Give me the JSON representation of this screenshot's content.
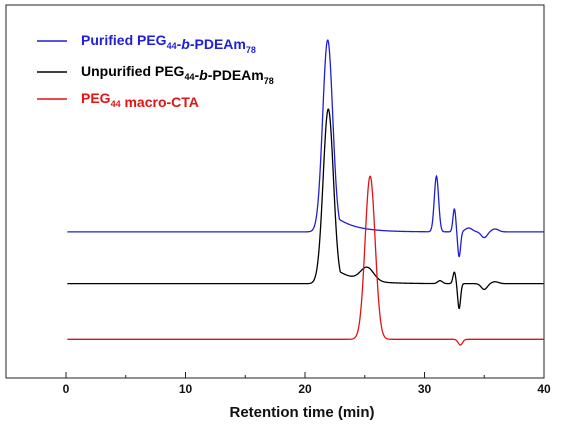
{
  "chart_data": {
    "type": "line",
    "xlabel": "Retention time (min)",
    "ylabel": "",
    "xlim": [
      0,
      40
    ],
    "x_ticks": [
      "0",
      "10",
      "20",
      "30",
      "40"
    ],
    "y_axis_visible": false,
    "grid": false,
    "legend_placement": "top-left",
    "series": [
      {
        "name": "Purified PEG44-b-PDEAm78",
        "legend": [
          {
            "t": "Purified PEG",
            "s": ""
          },
          {
            "t": "44",
            "s": "sub"
          },
          {
            "t": "-",
            "s": ""
          },
          {
            "t": "b",
            "s": "it"
          },
          {
            "t": "-PDEAm",
            "s": ""
          },
          {
            "t": "78",
            "s": "sub"
          }
        ],
        "color": "#1f1fd6",
        "baseline": 0.0,
        "peaks": [
          {
            "x": 21.9,
            "h": 1.0,
            "sigma": 0.42,
            "tail": 1.6
          },
          {
            "x": 31.0,
            "h": 0.29,
            "sigma": 0.18,
            "tail": 0.0
          },
          {
            "x": 32.5,
            "h": 0.12,
            "sigma": 0.12,
            "tail": 0.0
          },
          {
            "x": 32.9,
            "h": -0.13,
            "sigma": 0.12,
            "tail": 0.0
          },
          {
            "x": 33.7,
            "h": 0.02,
            "sigma": 0.3,
            "tail": 0.0
          },
          {
            "x": 35.0,
            "h": -0.03,
            "sigma": 0.25,
            "tail": 0.0
          },
          {
            "x": 35.9,
            "h": 0.015,
            "sigma": 0.3,
            "tail": 0.0
          }
        ]
      },
      {
        "name": "Unpurified PEG44-b-PDEAm78",
        "legend": [
          {
            "t": "Unpurified PEG",
            "s": ""
          },
          {
            "t": "44",
            "s": "sub"
          },
          {
            "t": "-",
            "s": ""
          },
          {
            "t": "b",
            "s": "it"
          },
          {
            "t": "-PDEAm",
            "s": ""
          },
          {
            "t": "78",
            "s": "sub"
          }
        ],
        "color": "#000000",
        "baseline": -0.27,
        "peaks": [
          {
            "x": 21.95,
            "h": 0.91,
            "sigma": 0.43,
            "tail": 1.7
          },
          {
            "x": 25.2,
            "h": 0.07,
            "sigma": 0.55,
            "tail": 0.0
          },
          {
            "x": 31.3,
            "h": 0.015,
            "sigma": 0.2,
            "tail": 0.0
          },
          {
            "x": 32.5,
            "h": 0.06,
            "sigma": 0.12,
            "tail": 0.0
          },
          {
            "x": 32.9,
            "h": -0.13,
            "sigma": 0.12,
            "tail": 0.0
          },
          {
            "x": 35.0,
            "h": -0.03,
            "sigma": 0.25,
            "tail": 0.0
          },
          {
            "x": 35.9,
            "h": 0.01,
            "sigma": 0.3,
            "tail": 0.0
          }
        ]
      },
      {
        "name": "PEG44 macro-CTA",
        "legend": [
          {
            "t": "PEG",
            "s": ""
          },
          {
            "t": "44",
            "s": "sub"
          },
          {
            "t": " macro-CTA",
            "s": ""
          }
        ],
        "color": "#e01414",
        "baseline": -0.56,
        "peaks": [
          {
            "x": 25.45,
            "h": 0.85,
            "sigma": 0.42,
            "tail": 0.25
          },
          {
            "x": 33.0,
            "h": -0.03,
            "sigma": 0.18,
            "tail": 0.0
          }
        ]
      }
    ]
  }
}
